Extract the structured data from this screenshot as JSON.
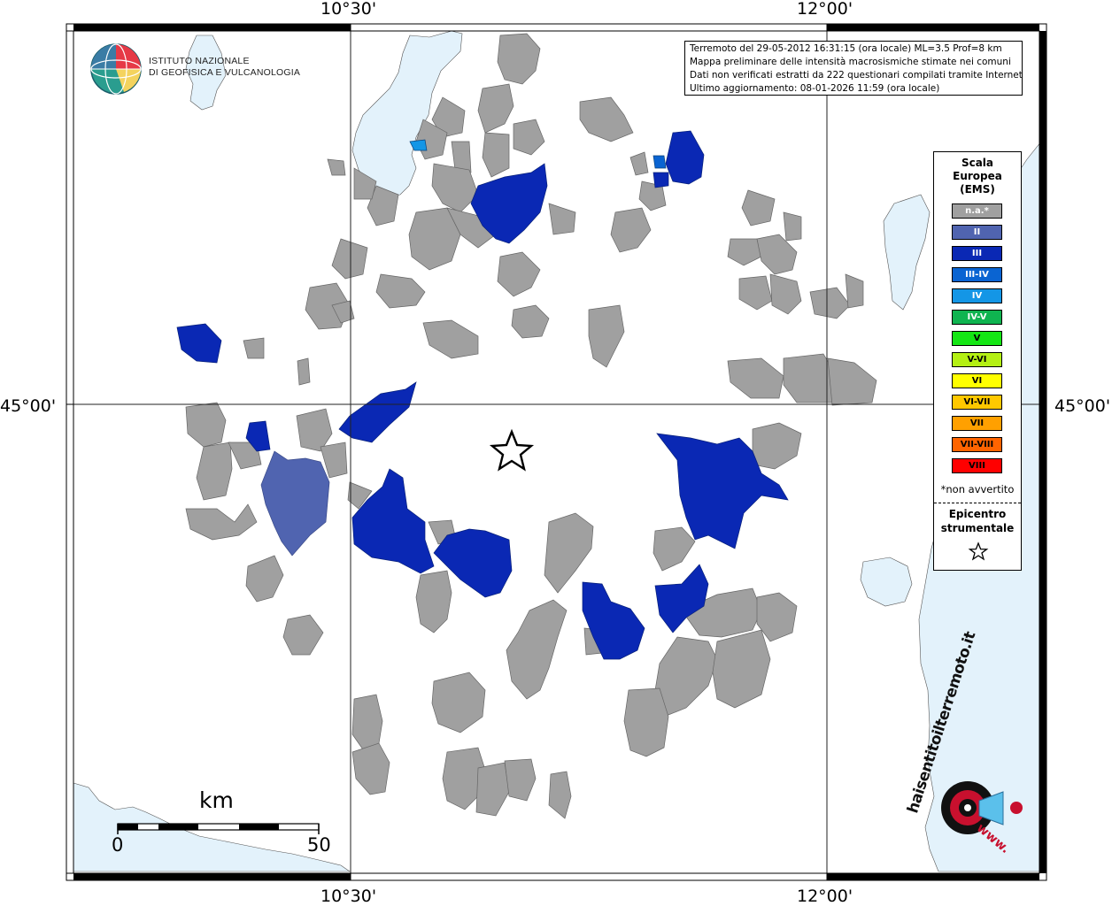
{
  "map": {
    "coords": {
      "top_left": "10°30'",
      "top_right": "12°00'",
      "bottom_left": "10°30'",
      "bottom_right": "12°00'",
      "left_lat": "45°00'",
      "right_lat": "45°00'"
    },
    "colors": {
      "water": "#e3f2fb",
      "municipality_na": "#a0a0a0",
      "intensity_II": "#5064b0",
      "intensity_III": "#0a28b4",
      "intensity_III_IV": "#0a64d2"
    }
  },
  "logo": {
    "line1": "ISTITUTO NAZIONALE",
    "line2": "DI GEOFISICA E VULCANOLOGIA",
    "icon": "globe-icon"
  },
  "info": {
    "line1": "Terremoto del 29-05-2012 16:31:15 (ora locale) ML=3.5 Prof=8 km",
    "line2": "Mappa preliminare delle intensità macrosismiche stimate nei comuni",
    "line3": "Dati non verificati estratti da 222 questionari compilati tramite Internet.",
    "line4": "Ultimo aggiornamento: 08-01-2026 11:59 (ora locale)"
  },
  "legend": {
    "title1": "Scala",
    "title2": "Europea",
    "title3": "(EMS)",
    "items": [
      {
        "label": "n.a.*",
        "color": "#a0a0a0",
        "text": "#ffffff"
      },
      {
        "label": "II",
        "color": "#5064b0",
        "text": "#ffffff"
      },
      {
        "label": "III",
        "color": "#0a28b4",
        "text": "#ffffff"
      },
      {
        "label": "III-IV",
        "color": "#0a64d2",
        "text": "#ffffff"
      },
      {
        "label": "IV",
        "color": "#1496e6",
        "text": "#ffffff"
      },
      {
        "label": "IV-V",
        "color": "#0fb450",
        "text": "#ffffff"
      },
      {
        "label": "V",
        "color": "#14e614",
        "text": "#000000"
      },
      {
        "label": "V-VI",
        "color": "#b4f014",
        "text": "#000000"
      },
      {
        "label": "VI",
        "color": "#ffff00",
        "text": "#000000"
      },
      {
        "label": "VI-VII",
        "color": "#ffc800",
        "text": "#000000"
      },
      {
        "label": "VII",
        "color": "#ffa000",
        "text": "#000000"
      },
      {
        "label": "VII-VIII",
        "color": "#ff6400",
        "text": "#000000"
      },
      {
        "label": "VIII",
        "color": "#ff0000",
        "text": "#000000"
      }
    ],
    "note": "*non avvertito",
    "epicenter1": "Epicentro",
    "epicenter2": "strumentale",
    "epicenter_icon": "star-icon"
  },
  "scale": {
    "unit": "km",
    "min": "0",
    "max": "50"
  },
  "badge": {
    "text": "haisentitoilterremoto.it",
    "url_text": "www.",
    "icon": "speaker-icon"
  }
}
